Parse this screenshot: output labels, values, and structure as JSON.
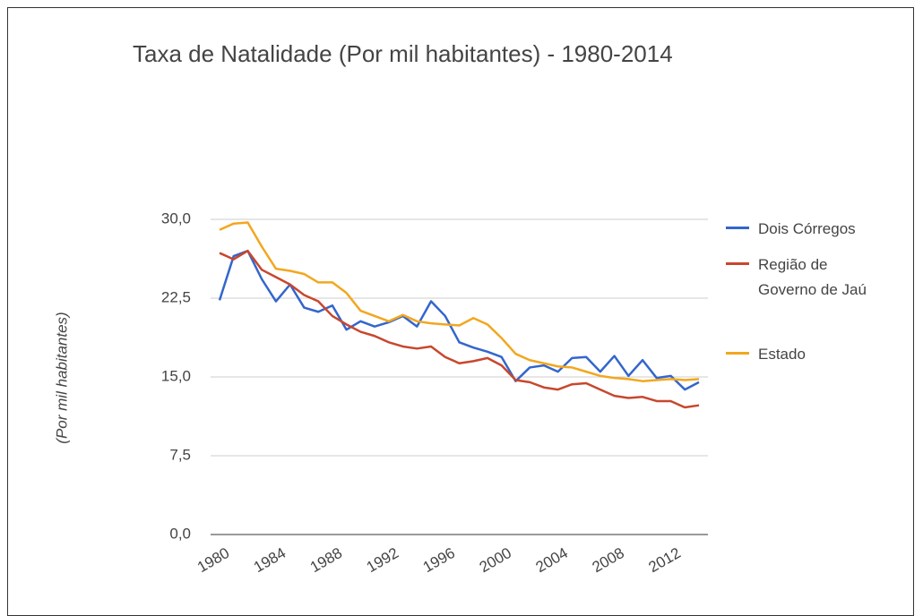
{
  "chart_data": {
    "type": "line",
    "title": "Taxa de Natalidade (Por mil habitantes) - 1980-2014",
    "y_label": "(Por mil habitantes)",
    "x": [
      1980,
      1981,
      1982,
      1983,
      1984,
      1985,
      1986,
      1987,
      1988,
      1989,
      1990,
      1991,
      1992,
      1993,
      1994,
      1995,
      1996,
      1997,
      1998,
      1999,
      2000,
      2001,
      2002,
      2003,
      2004,
      2005,
      2006,
      2007,
      2008,
      2009,
      2010,
      2011,
      2012,
      2013,
      2014
    ],
    "xlim": [
      1980,
      2014
    ],
    "xticks": [
      1980,
      1984,
      1988,
      1992,
      1996,
      2000,
      2004,
      2008,
      2012
    ],
    "ylim": [
      0,
      30
    ],
    "yticks": [
      {
        "value": 0,
        "label": "0,0"
      },
      {
        "value": 7.5,
        "label": "7,5"
      },
      {
        "value": 15,
        "label": "15,0"
      },
      {
        "value": 22.5,
        "label": "22,5"
      },
      {
        "value": 30,
        "label": "30,0"
      }
    ],
    "grid": true,
    "legend": "right",
    "series": [
      {
        "name": "Dois Córregos",
        "color": "#3366cc",
        "values": [
          22.3,
          26.5,
          27.0,
          24.3,
          22.2,
          23.8,
          21.6,
          21.2,
          21.8,
          19.5,
          20.3,
          19.8,
          20.2,
          20.8,
          19.8,
          22.2,
          20.8,
          18.3,
          17.8,
          17.4,
          16.9,
          14.6,
          15.9,
          16.1,
          15.5,
          16.8,
          16.9,
          15.5,
          17.0,
          15.1,
          16.6,
          14.9,
          15.1,
          13.8,
          14.5
        ]
      },
      {
        "name": "Região de Governo de Jaú",
        "color": "#c8472e",
        "values": [
          26.8,
          26.2,
          27.0,
          25.2,
          24.5,
          23.8,
          22.8,
          22.2,
          20.8,
          20.0,
          19.3,
          18.9,
          18.3,
          17.9,
          17.7,
          17.9,
          16.9,
          16.3,
          16.5,
          16.8,
          16.1,
          14.7,
          14.5,
          14.0,
          13.8,
          14.3,
          14.4,
          13.8,
          13.2,
          13.0,
          13.1,
          12.7,
          12.7,
          12.1,
          12.3
        ]
      },
      {
        "name": "Estado",
        "color": "#f2a71f",
        "values": [
          29.0,
          29.6,
          29.7,
          27.4,
          25.3,
          25.1,
          24.8,
          24.0,
          24.0,
          23.0,
          21.3,
          20.8,
          20.3,
          20.9,
          20.3,
          20.1,
          20.0,
          19.9,
          20.6,
          20.0,
          18.7,
          17.2,
          16.6,
          16.3,
          16.0,
          15.9,
          15.5,
          15.1,
          14.9,
          14.8,
          14.6,
          14.7,
          14.8,
          14.7,
          14.8
        ]
      }
    ]
  }
}
